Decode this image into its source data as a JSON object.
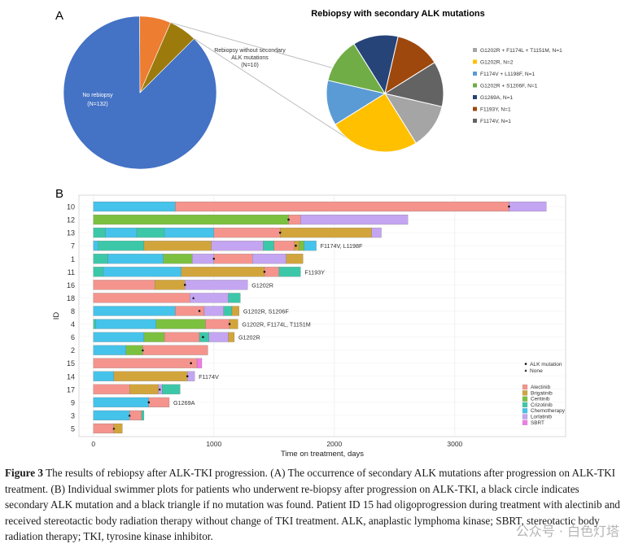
{
  "panel_a_letter": "A",
  "panel_b_letter": "B",
  "caption": {
    "label": "Figure 3",
    "text": " The results of rebiopsy after ALK-TKI progression. (A) The occurrence of secondary ALK mutations after progression on ALK-TKI treatment. (B) Individual swimmer plots for patients who underwent re-biopsy after progression on ALK-TKI, a black circle indicates secondary ALK mutation and a black triangle if no mutation was found. Patient ID 15 had oligoprogression during treatment with alectinib and received stereotactic body radiation therapy without change of TKI treatment. ALK, anaplastic lymphoma kinase; SBRT, stereotactic body radiation therapy; TKI, tyrosine kinase inhibitor."
  },
  "watermark": "公众号 · 白色灯塔",
  "chart_data": [
    {
      "type": "pie",
      "title": "",
      "slices": [
        {
          "label": "No rebiopsy",
          "sublabel": "(N=132)",
          "value": 132,
          "color": "#4472c4"
        },
        {
          "label": "Rebiopsy without secondary ALK mutations",
          "sublabel": "(N=10)",
          "value": 10,
          "color": "#ed7d31"
        },
        {
          "label": "",
          "sublabel": "",
          "value": 9,
          "color": "#9c7a0c"
        }
      ]
    },
    {
      "type": "pie",
      "title": "Rebiopsy with secondary ALK mutations",
      "slices": [
        {
          "label": "G1202R + F1174L + T1151M, N=1",
          "value": 1,
          "color": "#a5a5a5"
        },
        {
          "label": "G1202R, N=2",
          "value": 2,
          "color": "#ffc000"
        },
        {
          "label": "F1174V + L1198F, N=1",
          "value": 1,
          "color": "#5b9bd5"
        },
        {
          "label": "G1202R + S1206F, N=1",
          "value": 1,
          "color": "#70ad47"
        },
        {
          "label": "G1269A, N=1",
          "value": 1,
          "color": "#264478"
        },
        {
          "label": "F1193Y, N=1",
          "value": 1,
          "color": "#9e480e"
        },
        {
          "label": "F1174V, N=1",
          "value": 1,
          "color": "#636363"
        }
      ]
    },
    {
      "type": "bar",
      "subtype": "swimmer",
      "xlabel": "Time on treatment, days",
      "ylabel": "ID",
      "xlim": [
        -120,
        3920
      ],
      "xticks": [
        0,
        1000,
        2000,
        3000
      ],
      "grid": true,
      "treatments": [
        {
          "name": "Alectinib",
          "color": "#f4948d"
        },
        {
          "name": "Brigatinib",
          "color": "#d2a53c"
        },
        {
          "name": "Ceritinib",
          "color": "#7cc040"
        },
        {
          "name": "Crizotinib",
          "color": "#3cc8a8"
        },
        {
          "name": "Chemotherapy",
          "color": "#45c3ea"
        },
        {
          "name": "Lorlatinib",
          "color": "#c4a5f2"
        },
        {
          "name": "SBRT",
          "color": "#f07ce6"
        }
      ],
      "marker_legend": [
        {
          "shape": "circle",
          "label": "ALK mutation"
        },
        {
          "shape": "triangle",
          "label": "None"
        }
      ],
      "patients": [
        {
          "id": "10",
          "segments": [
            [
              "Chemotherapy",
              0,
              680
            ],
            [
              "Alectinib",
              680,
              3450
            ],
            [
              "Lorlatinib",
              3450,
              3760
            ]
          ],
          "marker": {
            "x": 3450,
            "shape": "circle"
          },
          "label": ""
        },
        {
          "id": "12",
          "segments": [
            [
              "Ceritinib",
              0,
              1620
            ],
            [
              "Alectinib",
              1620,
              1720
            ],
            [
              "Lorlatinib",
              1720,
              2610
            ]
          ],
          "marker": {
            "x": 1620,
            "shape": "circle"
          },
          "label": ""
        },
        {
          "id": "13",
          "segments": [
            [
              "Crizotinib",
              0,
              100
            ],
            [
              "Chemotherapy",
              100,
              360
            ],
            [
              "Crizotinib",
              360,
              590
            ],
            [
              "Chemotherapy",
              590,
              1000
            ],
            [
              "Alectinib",
              1000,
              1550
            ],
            [
              "Brigatinib",
              1550,
              2310
            ],
            [
              "Lorlatinib",
              2310,
              2390
            ]
          ],
          "marker": {
            "x": 1550,
            "shape": "circle"
          },
          "label": ""
        },
        {
          "id": "7",
          "segments": [
            [
              "Chemotherapy",
              0,
              40
            ],
            [
              "Crizotinib",
              40,
              420
            ],
            [
              "Brigatinib",
              420,
              980
            ],
            [
              "Lorlatinib",
              980,
              1410
            ],
            [
              "Crizotinib",
              1410,
              1500
            ],
            [
              "Alectinib",
              1500,
              1670
            ],
            [
              "Brigatinib",
              1670,
              1710
            ],
            [
              "Ceritinib",
              1710,
              1750
            ],
            [
              "Chemotherapy",
              1750,
              1850
            ]
          ],
          "marker": {
            "x": 1680,
            "shape": "circle"
          },
          "label": "F1174V, L1198F"
        },
        {
          "id": "1",
          "segments": [
            [
              "Crizotinib",
              0,
              120
            ],
            [
              "Chemotherapy",
              120,
              580
            ],
            [
              "Ceritinib",
              580,
              820
            ],
            [
              "Lorlatinib",
              820,
              1000
            ],
            [
              "Alectinib",
              1000,
              1320
            ],
            [
              "Lorlatinib",
              1320,
              1600
            ],
            [
              "Brigatinib",
              1600,
              1740
            ]
          ],
          "marker": {
            "x": 1000,
            "shape": "circle"
          },
          "label": ""
        },
        {
          "id": "11",
          "segments": [
            [
              "Crizotinib",
              0,
              80
            ],
            [
              "Chemotherapy",
              80,
              730
            ],
            [
              "Brigatinib",
              730,
              1420
            ],
            [
              "Alectinib",
              1420,
              1540
            ],
            [
              "Crizotinib",
              1540,
              1720
            ]
          ],
          "marker": {
            "x": 1420,
            "shape": "circle"
          },
          "label": "F1193Y"
        },
        {
          "id": "16",
          "segments": [
            [
              "Alectinib",
              0,
              510
            ],
            [
              "Brigatinib",
              510,
              760
            ],
            [
              "Lorlatinib",
              760,
              1280
            ]
          ],
          "marker": {
            "x": 760,
            "shape": "circle"
          },
          "label": "G1202R"
        },
        {
          "id": "18",
          "segments": [
            [
              "Alectinib",
              0,
              800
            ],
            [
              "Lorlatinib",
              800,
              1120
            ],
            [
              "Crizotinib",
              1120,
              1220
            ]
          ],
          "marker": {
            "x": 830,
            "shape": "triangle"
          },
          "label": ""
        },
        {
          "id": "8",
          "segments": [
            [
              "Chemotherapy",
              0,
              680
            ],
            [
              "Alectinib",
              680,
              920
            ],
            [
              "Lorlatinib",
              920,
              1080
            ],
            [
              "Crizotinib",
              1080,
              1150
            ],
            [
              "Brigatinib",
              1150,
              1210
            ]
          ],
          "marker": {
            "x": 880,
            "shape": "circle"
          },
          "label": "G1202R, S1206F"
        },
        {
          "id": "4",
          "segments": [
            [
              "Crizotinib",
              0,
              20
            ],
            [
              "Chemotherapy",
              20,
              520
            ],
            [
              "Ceritinib",
              520,
              930
            ],
            [
              "Alectinib",
              930,
              1130
            ],
            [
              "Brigatinib",
              1130,
              1200
            ]
          ],
          "marker": {
            "x": 1130,
            "shape": "circle"
          },
          "label": "G1202R, F1174L, T1151M"
        },
        {
          "id": "6",
          "segments": [
            [
              "Chemotherapy",
              0,
              420
            ],
            [
              "Ceritinib",
              420,
              590
            ],
            [
              "Alectinib",
              590,
              880
            ],
            [
              "Crizotinib",
              880,
              960
            ],
            [
              "Lorlatinib",
              960,
              1120
            ],
            [
              "Brigatinib",
              1120,
              1170
            ]
          ],
          "marker": {
            "x": 910,
            "shape": "circle"
          },
          "label": "G1202R"
        },
        {
          "id": "2",
          "segments": [
            [
              "Chemotherapy",
              0,
              270
            ],
            [
              "Ceritinib",
              270,
              410
            ],
            [
              "Alectinib",
              410,
              950
            ]
          ],
          "marker": {
            "x": 410,
            "shape": "triangle"
          },
          "label": ""
        },
        {
          "id": "15",
          "segments": [
            [
              "Alectinib",
              0,
              860
            ],
            [
              "SBRT",
              860,
              900
            ]
          ],
          "marker": {
            "x": 810,
            "shape": "circle"
          },
          "label": ""
        },
        {
          "id": "14",
          "segments": [
            [
              "Chemotherapy",
              0,
              170
            ],
            [
              "Brigatinib",
              170,
              780
            ],
            [
              "Lorlatinib",
              780,
              840
            ]
          ],
          "marker": {
            "x": 780,
            "shape": "circle"
          },
          "label": "F1174V"
        },
        {
          "id": "17",
          "segments": [
            [
              "Alectinib",
              0,
              300
            ],
            [
              "Brigatinib",
              300,
              540
            ],
            [
              "Lorlatinib",
              540,
              570
            ],
            [
              "Crizotinib",
              570,
              720
            ]
          ],
          "marker": {
            "x": 550,
            "shape": "triangle"
          },
          "label": ""
        },
        {
          "id": "9",
          "segments": [
            [
              "Chemotherapy",
              0,
              460
            ],
            [
              "Alectinib",
              460,
              630
            ]
          ],
          "marker": {
            "x": 460,
            "shape": "circle"
          },
          "label": "G1269A"
        },
        {
          "id": "3",
          "segments": [
            [
              "Chemotherapy",
              0,
              300
            ],
            [
              "Alectinib",
              300,
              400
            ],
            [
              "Crizotinib",
              400,
              420
            ]
          ],
          "marker": {
            "x": 300,
            "shape": "triangle"
          },
          "label": ""
        },
        {
          "id": "5",
          "segments": [
            [
              "Alectinib",
              0,
              170
            ],
            [
              "Brigatinib",
              170,
              240
            ]
          ],
          "marker": {
            "x": 170,
            "shape": "triangle"
          },
          "label": ""
        }
      ]
    }
  ]
}
